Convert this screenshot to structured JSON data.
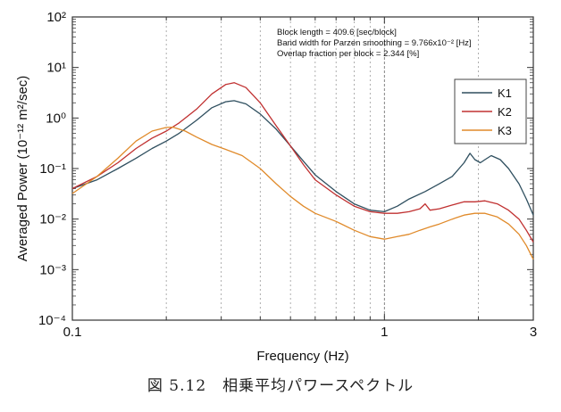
{
  "chart_data": {
    "type": "line",
    "xlabel": "Frequency (Hz)",
    "ylabel": "Averaged Power (10⁻¹² m²/sec)",
    "xscale": "log",
    "yscale": "log",
    "xlim": [
      0.1,
      3
    ],
    "ylim": [
      0.0001,
      100
    ],
    "x_ticks": [
      "0.1",
      "1",
      "3"
    ],
    "y_ticks": [
      "10⁻⁴",
      "10⁻³",
      "10⁻²",
      "10⁻¹",
      "10⁰",
      "10¹",
      "10²"
    ],
    "grid": "vertical dotted",
    "legend_position": "right",
    "annotations": [
      "Block length = 409.6 [sec/block]",
      "Band width for Parzen smoothing = 9.766x10⁻² [Hz]",
      "Overlap fraction per block = 2.344 [%]"
    ],
    "series": [
      {
        "name": "K1",
        "color": "#2f4f5f",
        "points": [
          [
            0.1,
            0.04
          ],
          [
            0.12,
            0.06
          ],
          [
            0.14,
            0.1
          ],
          [
            0.16,
            0.16
          ],
          [
            0.18,
            0.25
          ],
          [
            0.2,
            0.35
          ],
          [
            0.22,
            0.5
          ],
          [
            0.25,
            0.9
          ],
          [
            0.28,
            1.6
          ],
          [
            0.31,
            2.1
          ],
          [
            0.33,
            2.2
          ],
          [
            0.36,
            1.9
          ],
          [
            0.4,
            1.2
          ],
          [
            0.45,
            0.6
          ],
          [
            0.5,
            0.28
          ],
          [
            0.55,
            0.14
          ],
          [
            0.6,
            0.075
          ],
          [
            0.7,
            0.035
          ],
          [
            0.8,
            0.02
          ],
          [
            0.9,
            0.015
          ],
          [
            1.0,
            0.014
          ],
          [
            1.1,
            0.018
          ],
          [
            1.2,
            0.025
          ],
          [
            1.35,
            0.035
          ],
          [
            1.5,
            0.05
          ],
          [
            1.65,
            0.07
          ],
          [
            1.8,
            0.13
          ],
          [
            1.88,
            0.2
          ],
          [
            1.95,
            0.15
          ],
          [
            2.03,
            0.13
          ],
          [
            2.1,
            0.15
          ],
          [
            2.2,
            0.18
          ],
          [
            2.35,
            0.15
          ],
          [
            2.5,
            0.1
          ],
          [
            2.7,
            0.05
          ],
          [
            2.85,
            0.025
          ],
          [
            3.0,
            0.012
          ]
        ]
      },
      {
        "name": "K2",
        "color": "#c03030",
        "points": [
          [
            0.1,
            0.04
          ],
          [
            0.12,
            0.07
          ],
          [
            0.14,
            0.13
          ],
          [
            0.16,
            0.25
          ],
          [
            0.18,
            0.4
          ],
          [
            0.2,
            0.55
          ],
          [
            0.22,
            0.8
          ],
          [
            0.25,
            1.5
          ],
          [
            0.28,
            3.0
          ],
          [
            0.31,
            4.6
          ],
          [
            0.33,
            5.0
          ],
          [
            0.36,
            4.0
          ],
          [
            0.4,
            2.0
          ],
          [
            0.45,
            0.7
          ],
          [
            0.5,
            0.28
          ],
          [
            0.55,
            0.12
          ],
          [
            0.6,
            0.06
          ],
          [
            0.7,
            0.03
          ],
          [
            0.8,
            0.018
          ],
          [
            0.9,
            0.014
          ],
          [
            1.0,
            0.013
          ],
          [
            1.1,
            0.013
          ],
          [
            1.2,
            0.014
          ],
          [
            1.3,
            0.016
          ],
          [
            1.35,
            0.02
          ],
          [
            1.4,
            0.015
          ],
          [
            1.5,
            0.016
          ],
          [
            1.65,
            0.019
          ],
          [
            1.8,
            0.022
          ],
          [
            1.95,
            0.022
          ],
          [
            2.1,
            0.023
          ],
          [
            2.3,
            0.02
          ],
          [
            2.5,
            0.015
          ],
          [
            2.7,
            0.01
          ],
          [
            2.85,
            0.006
          ],
          [
            3.0,
            0.0035
          ]
        ]
      },
      {
        "name": "K3",
        "color": "#e08a2a",
        "points": [
          [
            0.1,
            0.032
          ],
          [
            0.12,
            0.07
          ],
          [
            0.14,
            0.16
          ],
          [
            0.16,
            0.35
          ],
          [
            0.18,
            0.55
          ],
          [
            0.2,
            0.65
          ],
          [
            0.21,
            0.66
          ],
          [
            0.23,
            0.55
          ],
          [
            0.25,
            0.42
          ],
          [
            0.28,
            0.3
          ],
          [
            0.31,
            0.24
          ],
          [
            0.35,
            0.18
          ],
          [
            0.4,
            0.1
          ],
          [
            0.45,
            0.05
          ],
          [
            0.5,
            0.028
          ],
          [
            0.55,
            0.018
          ],
          [
            0.6,
            0.013
          ],
          [
            0.7,
            0.009
          ],
          [
            0.8,
            0.006
          ],
          [
            0.9,
            0.0045
          ],
          [
            1.0,
            0.004
          ],
          [
            1.1,
            0.0045
          ],
          [
            1.2,
            0.005
          ],
          [
            1.3,
            0.006
          ],
          [
            1.4,
            0.007
          ],
          [
            1.5,
            0.008
          ],
          [
            1.65,
            0.01
          ],
          [
            1.8,
            0.012
          ],
          [
            1.95,
            0.013
          ],
          [
            2.1,
            0.013
          ],
          [
            2.3,
            0.011
          ],
          [
            2.5,
            0.008
          ],
          [
            2.7,
            0.005
          ],
          [
            2.85,
            0.003
          ],
          [
            3.0,
            0.0016
          ]
        ]
      }
    ]
  },
  "caption": "図 5.12　相乗平均パワースペクトル"
}
